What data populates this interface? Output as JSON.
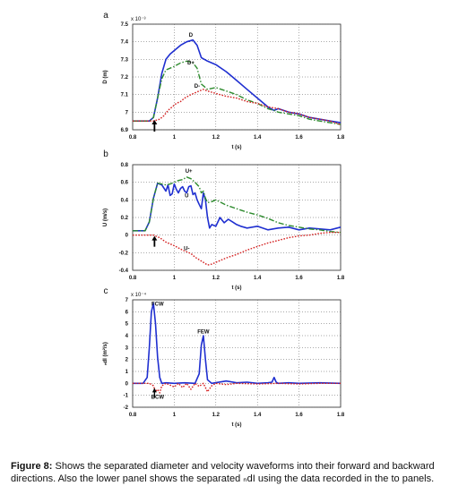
{
  "caption": {
    "label": "Figure 8:",
    "text": " Shows the separated diameter and velocity waveforms into their forward and backward directions. Also the lower panel shows the separated ₙdI using the data recorded in the to panels."
  },
  "chart_data": [
    {
      "type": "line",
      "panel_label": "a",
      "ylabel": "D (m)",
      "xlabel": "t (s)",
      "exponent_label": "x 10⁻³",
      "xlim": [
        0.8,
        1.8
      ],
      "ylim": [
        6.9,
        7.5
      ],
      "xticks": [
        "0.8",
        "1",
        "1.2",
        "1.4",
        "1.6",
        "1.8"
      ],
      "yticks": [
        "6.9",
        "7",
        "7.1",
        "7.2",
        "7.3",
        "7.4",
        "7.5"
      ],
      "grid": true,
      "annotations": [
        {
          "text": "D",
          "x": 1.08,
          "y": 7.43
        },
        {
          "text": "D+",
          "x": 1.08,
          "y": 7.27
        },
        {
          "text": "D-",
          "x": 1.11,
          "y": 7.14
        }
      ],
      "series": [
        {
          "name": "D",
          "color": "#1f2fd0",
          "dash": "solid",
          "x": [
            0.8,
            0.88,
            0.9,
            0.92,
            0.94,
            0.96,
            0.98,
            1.0,
            1.03,
            1.06,
            1.09,
            1.11,
            1.13,
            1.16,
            1.2,
            1.25,
            1.3,
            1.35,
            1.4,
            1.45,
            1.48,
            1.5,
            1.55,
            1.6,
            1.65,
            1.7,
            1.75,
            1.8
          ],
          "y": [
            6.95,
            6.95,
            6.97,
            7.08,
            7.22,
            7.3,
            7.33,
            7.35,
            7.38,
            7.4,
            7.41,
            7.38,
            7.31,
            7.29,
            7.27,
            7.23,
            7.18,
            7.13,
            7.08,
            7.03,
            7.01,
            7.02,
            7.0,
            6.99,
            6.97,
            6.96,
            6.95,
            6.94
          ]
        },
        {
          "name": "D+",
          "color": "#2e8b2e",
          "dash": "dashdot",
          "x": [
            0.8,
            0.88,
            0.9,
            0.92,
            0.94,
            0.96,
            0.98,
            1.0,
            1.03,
            1.06,
            1.09,
            1.11,
            1.13,
            1.16,
            1.2,
            1.25,
            1.3,
            1.35,
            1.4,
            1.45,
            1.48,
            1.5,
            1.55,
            1.6,
            1.65,
            1.7,
            1.75,
            1.8
          ],
          "y": [
            6.95,
            6.95,
            6.97,
            7.08,
            7.19,
            7.24,
            7.25,
            7.26,
            7.28,
            7.29,
            7.28,
            7.25,
            7.16,
            7.13,
            7.14,
            7.12,
            7.1,
            7.07,
            7.05,
            7.02,
            7.01,
            7.0,
            6.99,
            6.98,
            6.96,
            6.95,
            6.94,
            6.93
          ]
        },
        {
          "name": "D-",
          "color": "#d42020",
          "dash": "dotted",
          "x": [
            0.8,
            0.9,
            0.93,
            0.95,
            0.97,
            0.99,
            1.01,
            1.03,
            1.05,
            1.08,
            1.1,
            1.12,
            1.14,
            1.16,
            1.19,
            1.22,
            1.25,
            1.3,
            1.35,
            1.4,
            1.45,
            1.5,
            1.55,
            1.6,
            1.65,
            1.7,
            1.75,
            1.8
          ],
          "y": [
            6.95,
            6.95,
            6.96,
            6.98,
            7.01,
            7.03,
            7.05,
            7.06,
            7.08,
            7.1,
            7.11,
            7.12,
            7.13,
            7.12,
            7.11,
            7.1,
            7.09,
            7.08,
            7.06,
            7.05,
            7.03,
            7.02,
            7.0,
            6.99,
            6.97,
            6.96,
            6.95,
            6.93
          ]
        }
      ]
    },
    {
      "type": "line",
      "panel_label": "b",
      "ylabel": "U (m/s)",
      "xlabel": "t (s)",
      "xlim": [
        0.8,
        1.8
      ],
      "ylim": [
        -0.4,
        0.8
      ],
      "xticks": [
        "0.8",
        "1",
        "1.2",
        "1.4",
        "1.6",
        "1.8"
      ],
      "yticks": [
        "-0.4",
        "-0.2",
        "0",
        "0.2",
        "0.4",
        "0.6",
        "0.8"
      ],
      "grid": true,
      "annotations": [
        {
          "text": "U+",
          "x": 1.07,
          "y": 0.71
        },
        {
          "text": "U",
          "x": 1.06,
          "y": 0.43
        },
        {
          "text": "U-",
          "x": 1.06,
          "y": -0.17
        }
      ],
      "series": [
        {
          "name": "U",
          "color": "#1f2fd0",
          "dash": "solid",
          "x": [
            0.8,
            0.86,
            0.88,
            0.9,
            0.92,
            0.94,
            0.96,
            0.97,
            0.98,
            0.99,
            1.0,
            1.01,
            1.02,
            1.03,
            1.04,
            1.05,
            1.06,
            1.07,
            1.08,
            1.09,
            1.1,
            1.11,
            1.12,
            1.13,
            1.14,
            1.15,
            1.16,
            1.17,
            1.18,
            1.2,
            1.22,
            1.24,
            1.26,
            1.28,
            1.3,
            1.32,
            1.35,
            1.4,
            1.45,
            1.5,
            1.55,
            1.6,
            1.65,
            1.7,
            1.75,
            1.8
          ],
          "y": [
            0.05,
            0.05,
            0.15,
            0.42,
            0.59,
            0.57,
            0.5,
            0.57,
            0.45,
            0.47,
            0.58,
            0.52,
            0.48,
            0.53,
            0.55,
            0.5,
            0.48,
            0.55,
            0.56,
            0.46,
            0.48,
            0.4,
            0.35,
            0.3,
            0.48,
            0.4,
            0.2,
            0.08,
            0.12,
            0.1,
            0.2,
            0.14,
            0.18,
            0.15,
            0.12,
            0.1,
            0.08,
            0.1,
            0.06,
            0.08,
            0.09,
            0.06,
            0.08,
            0.07,
            0.06,
            0.09
          ]
        },
        {
          "name": "U+",
          "color": "#2e8b2e",
          "dash": "dashdot",
          "x": [
            0.8,
            0.86,
            0.88,
            0.9,
            0.92,
            0.94,
            0.96,
            0.98,
            1.0,
            1.02,
            1.04,
            1.06,
            1.08,
            1.1,
            1.12,
            1.13,
            1.14,
            1.15,
            1.16,
            1.18,
            1.2,
            1.25,
            1.3,
            1.35,
            1.4,
            1.45,
            1.5,
            1.55,
            1.6,
            1.65,
            1.7,
            1.75,
            1.8
          ],
          "y": [
            0.05,
            0.05,
            0.15,
            0.42,
            0.59,
            0.58,
            0.57,
            0.58,
            0.6,
            0.62,
            0.63,
            0.66,
            0.64,
            0.6,
            0.55,
            0.48,
            0.5,
            0.42,
            0.37,
            0.38,
            0.4,
            0.34,
            0.3,
            0.26,
            0.23,
            0.19,
            0.14,
            0.11,
            0.09,
            0.07,
            0.06,
            0.04,
            0.03
          ]
        },
        {
          "name": "U-",
          "color": "#d42020",
          "dash": "dotted",
          "x": [
            0.8,
            0.9,
            0.93,
            0.96,
            1.0,
            1.04,
            1.08,
            1.1,
            1.12,
            1.14,
            1.16,
            1.18,
            1.2,
            1.25,
            1.3,
            1.35,
            1.4,
            1.45,
            1.5,
            1.55,
            1.6,
            1.65,
            1.7,
            1.75,
            1.8
          ],
          "y": [
            0.0,
            0.0,
            -0.03,
            -0.08,
            -0.12,
            -0.17,
            -0.21,
            -0.25,
            -0.28,
            -0.31,
            -0.34,
            -0.33,
            -0.31,
            -0.26,
            -0.22,
            -0.17,
            -0.13,
            -0.09,
            -0.06,
            -0.03,
            -0.01,
            0.0,
            0.02,
            0.03,
            0.03
          ]
        }
      ]
    },
    {
      "type": "line",
      "panel_label": "c",
      "ylabel": "ₙdI (m²/s)",
      "xlabel": "t (s)",
      "exponent_label": "x 10⁻⁴",
      "xlim": [
        0.8,
        1.8
      ],
      "ylim": [
        -2,
        7
      ],
      "xticks": [
        "0.8",
        "1",
        "1.2",
        "1.4",
        "1.6",
        "1.8"
      ],
      "yticks": [
        "-2",
        "-1",
        "0",
        "1",
        "2",
        "3",
        "4",
        "5",
        "6",
        "7"
      ],
      "grid": true,
      "annotations": [
        {
          "text": "FCW",
          "x": 0.92,
          "y": 6.5
        },
        {
          "text": "FEW",
          "x": 1.14,
          "y": 4.2
        },
        {
          "text": "BCW",
          "x": 0.92,
          "y": -1.3
        }
      ],
      "series": [
        {
          "name": "FCW/FEW",
          "color": "#1f2fd0",
          "dash": "solid",
          "x": [
            0.8,
            0.85,
            0.87,
            0.88,
            0.89,
            0.9,
            0.91,
            0.92,
            0.93,
            0.94,
            0.96,
            1.0,
            1.05,
            1.1,
            1.12,
            1.13,
            1.14,
            1.15,
            1.16,
            1.18,
            1.25,
            1.3,
            1.35,
            1.4,
            1.45,
            1.47,
            1.48,
            1.49,
            1.5,
            1.55,
            1.6,
            1.7,
            1.8
          ],
          "y": [
            0,
            0,
            0.5,
            3.0,
            6.0,
            6.7,
            5.0,
            2.2,
            0.5,
            0,
            0.05,
            0,
            0.05,
            0,
            0.8,
            3.2,
            4.0,
            2.0,
            0.3,
            0,
            0.2,
            0.05,
            0.1,
            0,
            0.05,
            0.1,
            0.5,
            0.1,
            0,
            0.05,
            0,
            0.05,
            0
          ]
        },
        {
          "name": "BCW",
          "color": "#d42020",
          "dash": "dotted",
          "x": [
            0.8,
            0.88,
            0.9,
            0.91,
            0.92,
            0.93,
            0.94,
            0.96,
            1.0,
            1.02,
            1.04,
            1.06,
            1.08,
            1.1,
            1.12,
            1.14,
            1.16,
            1.18,
            1.2,
            1.25,
            1.3,
            1.4,
            1.5,
            1.6,
            1.7,
            1.8
          ],
          "y": [
            0,
            0,
            -0.2,
            -0.7,
            -0.5,
            -0.8,
            -0.2,
            0,
            -0.3,
            0,
            -0.35,
            0,
            -0.5,
            0,
            -0.25,
            0,
            -0.7,
            -0.2,
            0,
            -0.1,
            0,
            -0.05,
            0,
            -0.05,
            0,
            0
          ]
        }
      ]
    }
  ]
}
